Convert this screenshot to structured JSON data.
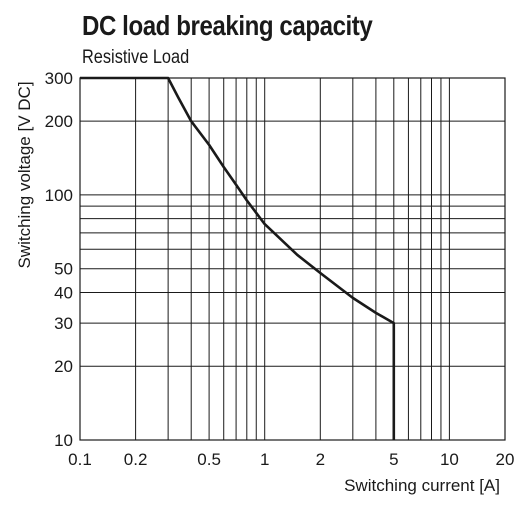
{
  "chart_data": {
    "type": "line",
    "title": "DC load breaking capacity",
    "subtitle": "Resistive Load",
    "xlabel": "Switching current [A]",
    "ylabel": "Switching voltage [V DC]",
    "x_scale": "log",
    "y_scale": "log",
    "xlim": [
      0.1,
      20
    ],
    "ylim": [
      10,
      300
    ],
    "x_ticks": [
      0.1,
      0.2,
      0.5,
      1,
      2,
      5,
      10,
      20
    ],
    "x_tick_labels": [
      "0.1",
      "0.2",
      "0.5",
      "1",
      "2",
      "5",
      "10",
      "20"
    ],
    "y_ticks": [
      10,
      20,
      30,
      40,
      50,
      100,
      200,
      300
    ],
    "y_tick_labels": [
      "10",
      "20",
      "30",
      "40",
      "50",
      "100",
      "200",
      "300"
    ],
    "x_grid": [
      0.1,
      0.2,
      0.3,
      0.4,
      0.5,
      0.6,
      0.7,
      0.8,
      0.9,
      1,
      2,
      3,
      4,
      5,
      6,
      7,
      8,
      9,
      10,
      20
    ],
    "y_grid": [
      10,
      20,
      30,
      40,
      50,
      60,
      70,
      80,
      90,
      100,
      200,
      300
    ],
    "grid": true,
    "series": [
      {
        "x": [
          0.1,
          0.3,
          0.34,
          0.4,
          0.5,
          0.6,
          0.7,
          0.8,
          1,
          1.5,
          2,
          3,
          4,
          5,
          5
        ],
        "y": [
          300,
          300,
          250,
          200,
          160,
          130,
          110,
          95,
          76,
          57,
          48,
          38,
          33,
          30,
          10
        ]
      }
    ]
  }
}
